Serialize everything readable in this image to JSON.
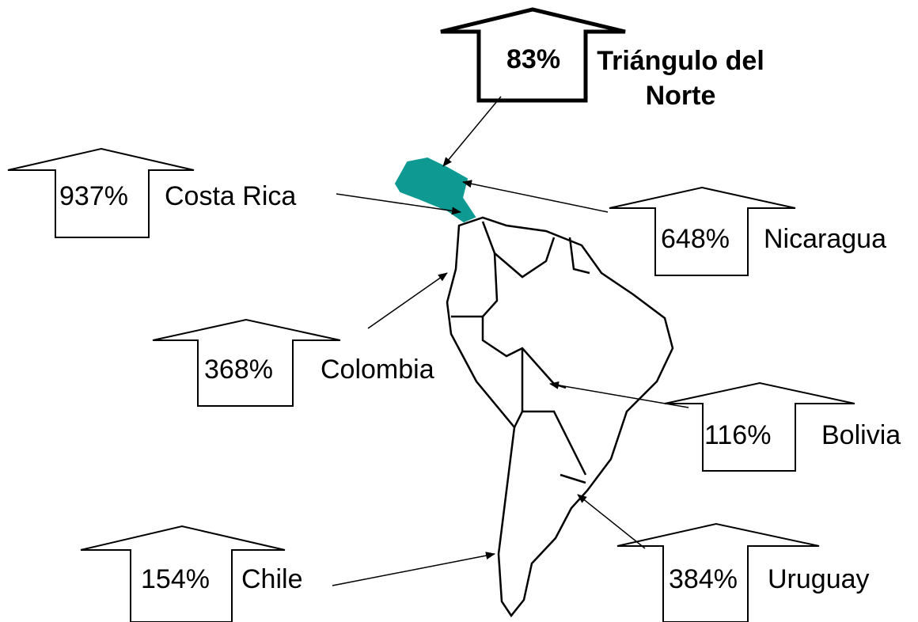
{
  "labels": [
    {
      "percent": "83%",
      "name": "Triángulo del Norte"
    },
    {
      "percent": "937%",
      "name": "Costa Rica"
    },
    {
      "percent": "648%",
      "name": "Nicaragua"
    },
    {
      "percent": "368%",
      "name": "Colombia"
    },
    {
      "percent": "116%",
      "name": "Bolivia"
    },
    {
      "percent": "154%",
      "name": "Chile"
    },
    {
      "percent": "384%",
      "name": "Uruguay"
    }
  ]
}
